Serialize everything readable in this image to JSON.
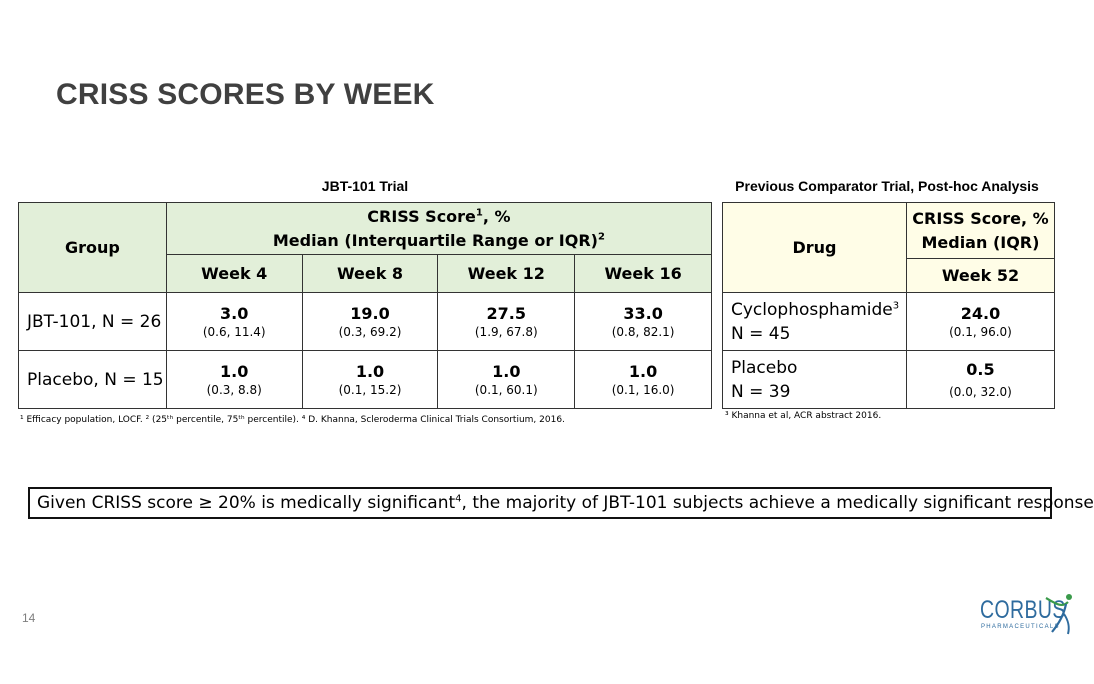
{
  "title": "CRISS SCORES BY WEEK",
  "left_table": {
    "caption": "JBT-101 Trial",
    "group_header": "Group",
    "score_header_line1": "CRISS Score",
    "score_header_sup1": "1",
    "score_header_line1_suffix": ", %",
    "score_header_line2": "Median (Interquartile Range or IQR)",
    "score_header_sup2": "2",
    "weeks": [
      "Week 4",
      "Week 8",
      "Week 12",
      "Week 16"
    ],
    "rows": [
      {
        "label": "JBT-101, N = 26",
        "cells": [
          {
            "median": "3.0",
            "iqr": "(0.6, 11.4)"
          },
          {
            "median": "19.0",
            "iqr": "(0.3, 69.2)"
          },
          {
            "median": "27.5",
            "iqr": "(1.9, 67.8)"
          },
          {
            "median": "33.0",
            "iqr": "(0.8, 82.1)"
          }
        ]
      },
      {
        "label": "Placebo, N = 15",
        "cells": [
          {
            "median": "1.0",
            "iqr": "(0.3, 8.8)"
          },
          {
            "median": "1.0",
            "iqr": "(0.1, 15.2)"
          },
          {
            "median": "1.0",
            "iqr": "(0.1, 60.1)"
          },
          {
            "median": "1.0",
            "iqr": "(0.1, 16.0)"
          }
        ]
      }
    ],
    "footnote": "¹ Efficacy population, LOCF.  ² (25ᵗʰ percentile, 75ᵗʰ percentile). ⁴ D. Khanna, Scleroderma Clinical Trials Consortium, 2016."
  },
  "right_table": {
    "caption": "Previous Comparator Trial, Post-hoc Analysis",
    "drug_header": "Drug",
    "score_header_line1": "CRISS Score, %",
    "score_header_line2": "Median (IQR)",
    "week": "Week 52",
    "rows": [
      {
        "label_line1": "Cyclophosphamide",
        "label_sup": "3",
        "label_line2": "N = 45",
        "median": "24.0",
        "iqr": "(0.1, 96.0)"
      },
      {
        "label_line1": "Placebo",
        "label_sup": "",
        "label_line2": "N = 39",
        "median": "0.5",
        "iqr": "(0.0, 32.0)"
      }
    ],
    "footnote": "³ Khanna et al, ACR abstract 2016."
  },
  "banner": {
    "text_before": "Given CRISS score ≥ 20% is medically significant",
    "sup": "4",
    "text_after": ", the majority of JBT-101 subjects achieve a medically significant response"
  },
  "page_number": "14",
  "logo": {
    "name": "CORBUS",
    "sub": "PHARMACEUTICALS",
    "color": "#2e6b9e"
  },
  "colors": {
    "header_green": "#e2efd9",
    "header_yellow": "#fffde7",
    "title": "#404040"
  }
}
